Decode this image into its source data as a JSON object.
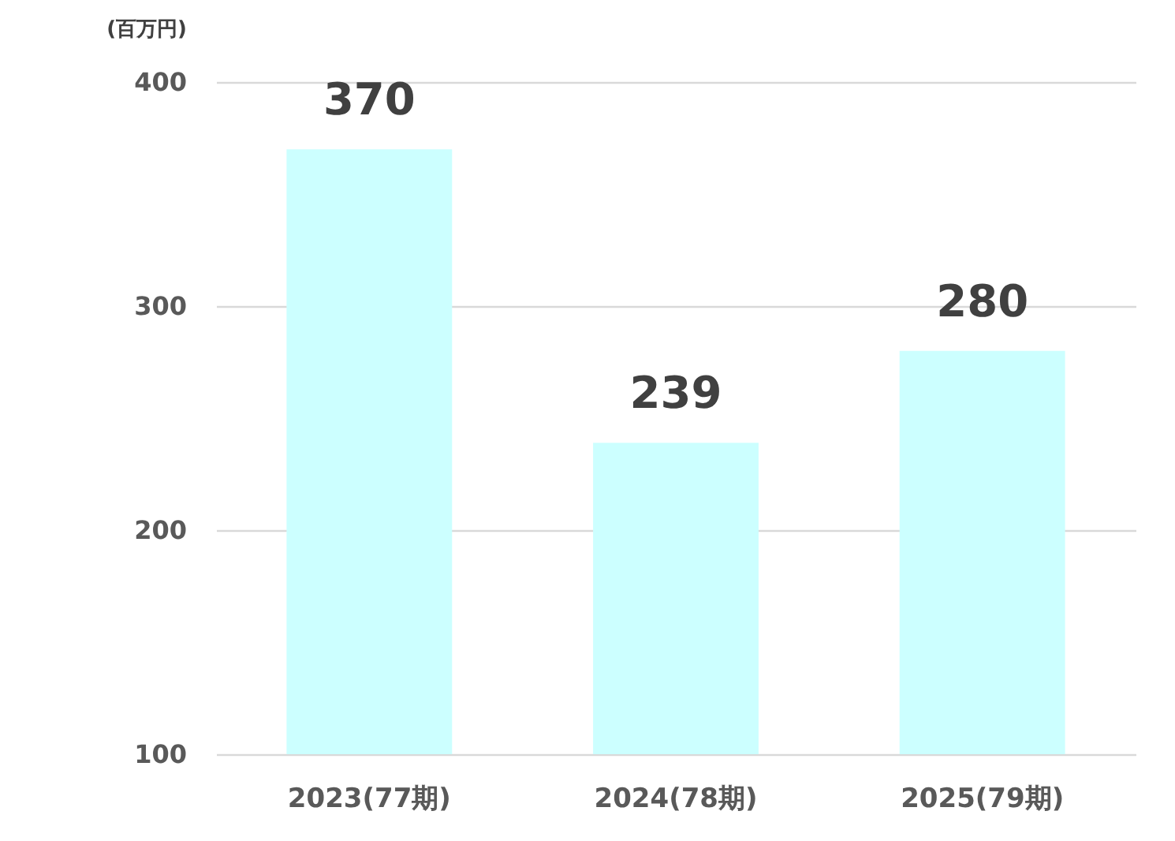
{
  "chart_data": {
    "type": "bar",
    "ylabel": "(百万円)",
    "categories": [
      "2023(77期)",
      "2024(78期)",
      "2025(79期)"
    ],
    "values": [
      370,
      239,
      280
    ],
    "color": "#ccffff",
    "ylim": [
      100,
      400
    ],
    "yticks": [
      100,
      200,
      300,
      400
    ],
    "grid": "y",
    "data_labels": true
  }
}
